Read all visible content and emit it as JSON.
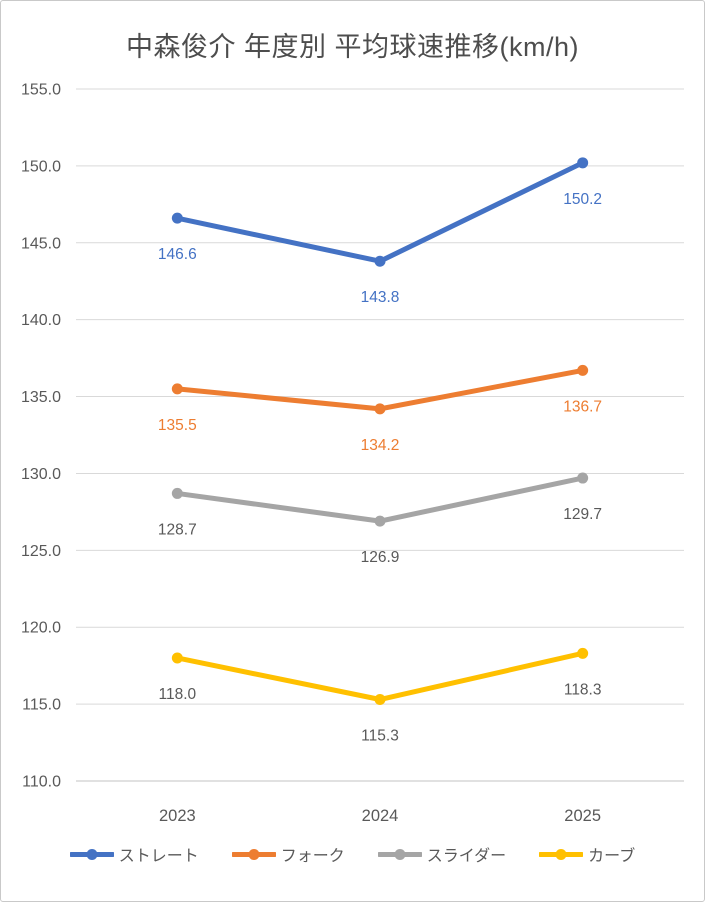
{
  "chart_data": {
    "type": "line",
    "title": "中森俊介 年度別 平均球速推移(km/h)",
    "categories": [
      "2023",
      "2024",
      "2025"
    ],
    "series": [
      {
        "name": "ストレート",
        "values": [
          146.6,
          143.8,
          150.2
        ],
        "color": "#4472C4",
        "label_color": "#4472C4"
      },
      {
        "name": "フォーク",
        "values": [
          135.5,
          134.2,
          136.7
        ],
        "color": "#ED7D31",
        "label_color": "#ED7D31"
      },
      {
        "name": "スライダー",
        "values": [
          128.7,
          126.9,
          129.7
        ],
        "color": "#A5A5A5",
        "label_color": "#595959"
      },
      {
        "name": "カーブ",
        "values": [
          118.0,
          115.3,
          118.3
        ],
        "color": "#FFC000",
        "label_color": "#595959"
      }
    ],
    "xlabel": "",
    "ylabel": "",
    "ylim": [
      110,
      155
    ],
    "ytick_step": 5,
    "ytick_decimals": 1,
    "data_label_decimals": 1,
    "grid": true,
    "legend_position": "bottom",
    "colors": {
      "axis_text": "#595959",
      "gridline": "#D9D9D9",
      "axis_line": "#C3C3C3",
      "title_text": "#4d4d4d"
    }
  }
}
